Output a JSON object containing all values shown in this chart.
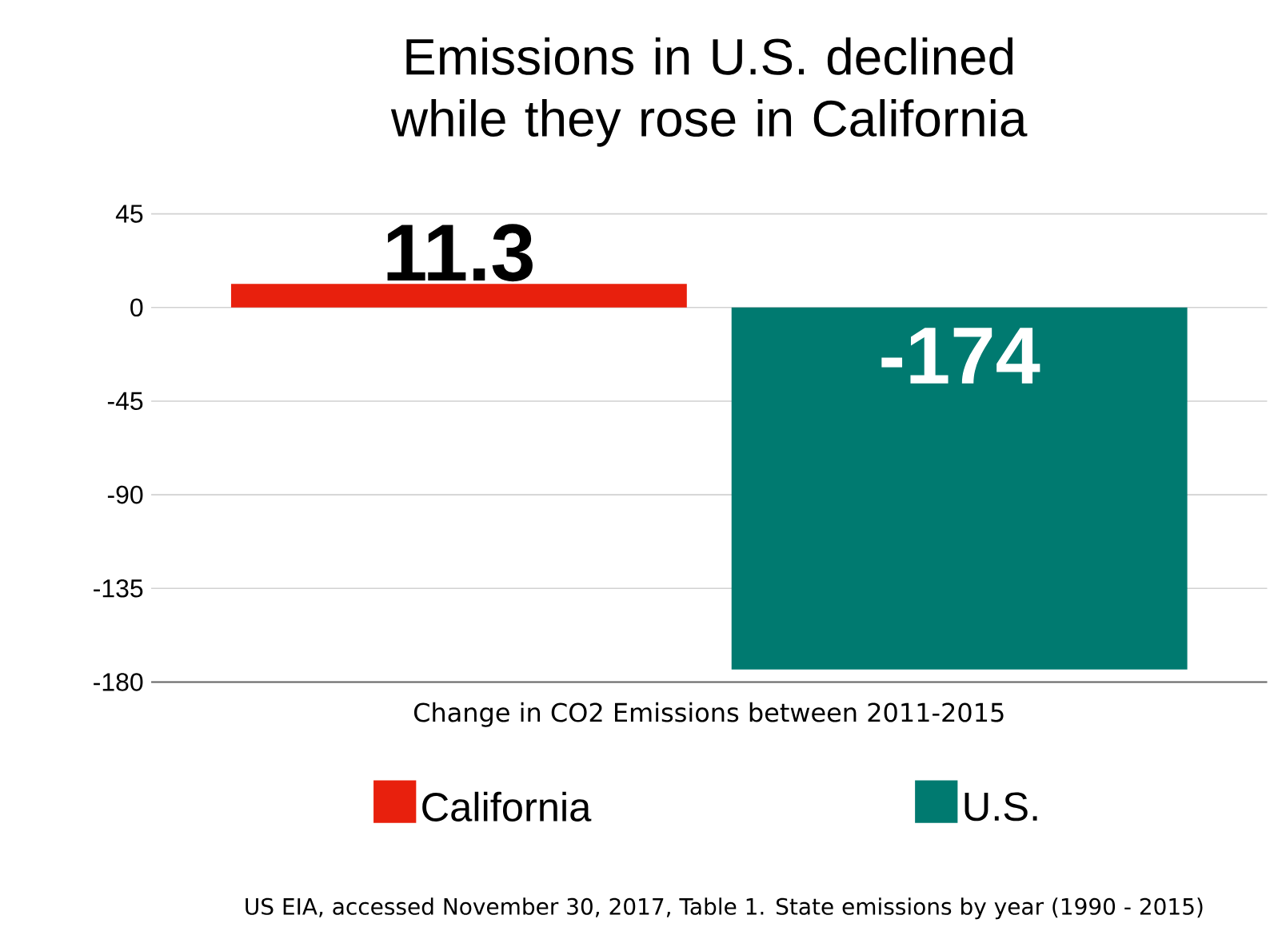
{
  "chart_data": {
    "type": "bar",
    "title": "Emissions in U.S. declined while they rose in California",
    "categories": [
      "Change in CO2 Emissions between 2011-2015"
    ],
    "series": [
      {
        "name": "California",
        "color": "#e8200d",
        "values": [
          11.3
        ]
      },
      {
        "name": "U.S.",
        "color": "#007a70",
        "values": [
          -174
        ]
      }
    ],
    "ylim": [
      -180,
      45
    ],
    "yticks": [
      -180,
      -135,
      -90,
      -45,
      0,
      45
    ],
    "grid": "y",
    "legend": "bottom",
    "data_labels": true,
    "annotations": [
      "US EIA, accessed November 30, 2017,  Table 1. State emissions by year (1990 - 2015)"
    ]
  }
}
